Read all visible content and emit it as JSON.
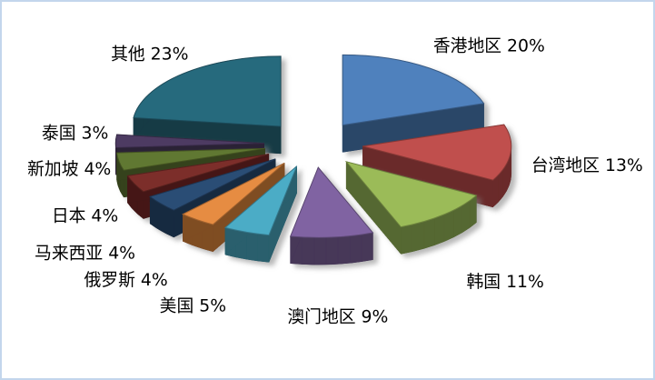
{
  "frame": {
    "background": "#FFFFFF",
    "border_color": "#C3D6EC"
  },
  "chart_data": {
    "type": "pie",
    "style": "3d-exploded",
    "title": "",
    "legend_position": "none",
    "start_angle_deg": 0,
    "direction": "clockwise",
    "label_format": "{label} {value}%",
    "label_text_color": "#000000",
    "slices": [
      {
        "label": "香港地区",
        "value": 20,
        "color": "#4F81BD"
      },
      {
        "label": "台湾地区",
        "value": 13,
        "color": "#C0504D"
      },
      {
        "label": "韩国",
        "value": 11,
        "color": "#9BBB59"
      },
      {
        "label": "澳门地区",
        "value": 9,
        "color": "#8064A2"
      },
      {
        "label": "美国",
        "value": 5,
        "color": "#4BACC6"
      },
      {
        "label": "俄罗斯",
        "value": 4,
        "color": "#E68C42"
      },
      {
        "label": "马来西亚",
        "value": 4,
        "color": "#2C4D75"
      },
      {
        "label": "日本",
        "value": 4,
        "color": "#7B2E2B"
      },
      {
        "label": "新加坡",
        "value": 4,
        "color": "#617831"
      },
      {
        "label": "泰国",
        "value": 3,
        "color": "#4D3B62"
      },
      {
        "label": "其他",
        "value": 23,
        "color": "#276A7D"
      }
    ]
  }
}
